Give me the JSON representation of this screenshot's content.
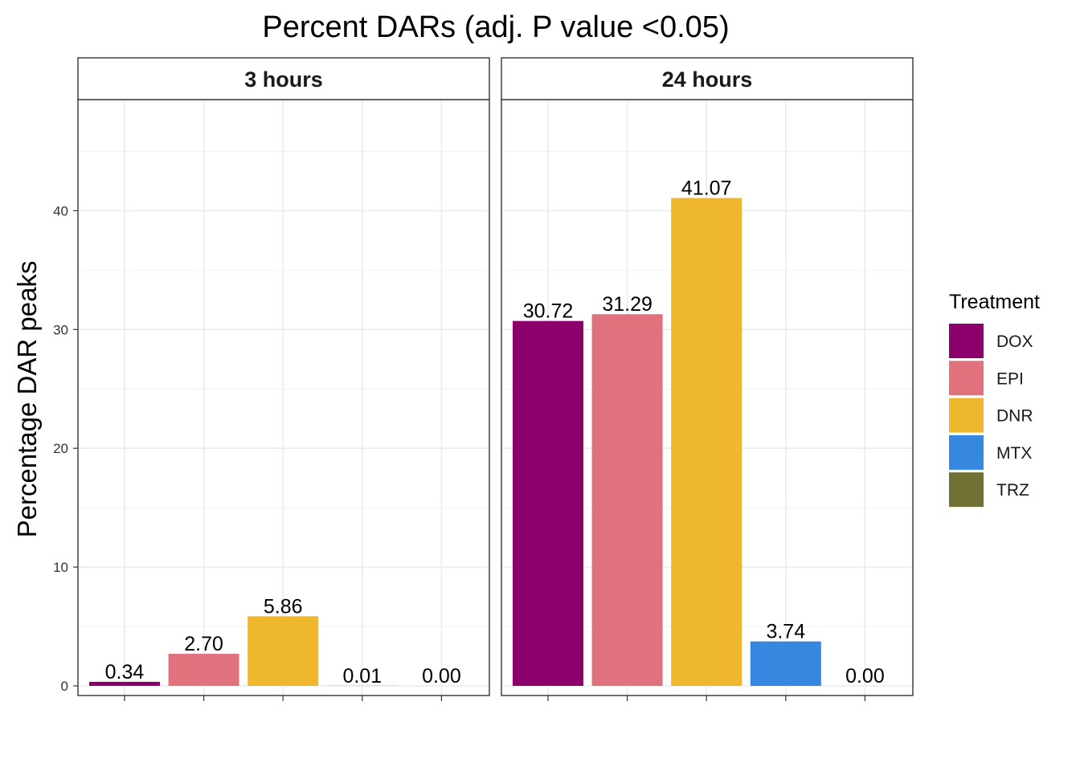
{
  "chart_data": {
    "type": "bar",
    "title": "Percent DARs (adj. P value <0.05)",
    "ylabel": "Percentage DAR peaks",
    "xlabel": "",
    "ylim": [
      0,
      49
    ],
    "yticks": [
      0,
      10,
      20,
      30,
      40
    ],
    "grid": true,
    "legend_position": "right",
    "categories": [
      "DOX",
      "EPI",
      "DNR",
      "MTX",
      "TRZ"
    ],
    "colors": {
      "DOX": "#8b006b",
      "EPI": "#df727d",
      "DNR": "#efb72d",
      "MTX": "#3587e0",
      "TRZ": "#6f7034"
    },
    "legend": {
      "title": "Treatment",
      "items": [
        "DOX",
        "EPI",
        "DNR",
        "MTX",
        "TRZ"
      ]
    },
    "panels": [
      {
        "label": "3 hours",
        "values": [
          0.34,
          2.7,
          5.86,
          0.01,
          0.0
        ],
        "labels": [
          "0.34",
          "2.70",
          "5.86",
          "0.01",
          "0.00"
        ]
      },
      {
        "label": "24 hours",
        "values": [
          30.72,
          31.29,
          41.07,
          3.74,
          0.0
        ],
        "labels": [
          "30.72",
          "31.29",
          "41.07",
          "3.74",
          "0.00"
        ]
      }
    ]
  }
}
